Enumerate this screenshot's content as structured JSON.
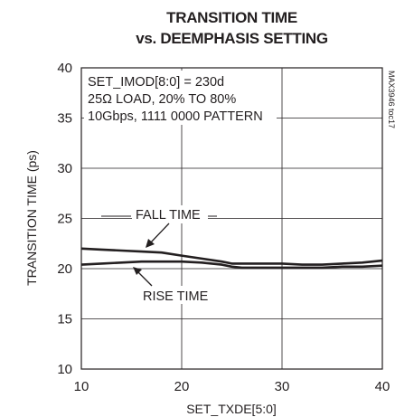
{
  "chart_data": {
    "type": "line",
    "title_line1": "TRANSITION TIME",
    "title_line2": "vs. DEEMPHASIS SETTING",
    "xlabel": "SET_TXDE[5:0]",
    "ylabel": "TRANSITION TIME (ps)",
    "xlim": [
      10,
      40
    ],
    "ylim": [
      10,
      40
    ],
    "xticks": [
      "10",
      "20",
      "30",
      "40"
    ],
    "yticks": [
      "10",
      "15",
      "20",
      "25",
      "30",
      "35",
      "40"
    ],
    "grid": true,
    "conditions": [
      "SET_IMOD[8:0] = 230d",
      "25Ω LOAD, 20% TO 80%",
      "10Gbps, 1111 0000 PATTERN"
    ],
    "figure_code": "MAX3946 toc17",
    "series": [
      {
        "name": "FALL TIME",
        "x": [
          10,
          12,
          14,
          16,
          18,
          20,
          22,
          24,
          25,
          26,
          28,
          30,
          32,
          34,
          36,
          38,
          40
        ],
        "y": [
          22.0,
          21.9,
          21.8,
          21.7,
          21.6,
          21.3,
          21.0,
          20.7,
          20.5,
          20.5,
          20.5,
          20.5,
          20.4,
          20.4,
          20.5,
          20.6,
          20.8
        ]
      },
      {
        "name": "RISE TIME",
        "x": [
          10,
          12,
          14,
          16,
          18,
          20,
          22,
          24,
          25,
          26,
          28,
          30,
          32,
          34,
          36,
          38,
          40
        ],
        "y": [
          20.4,
          20.5,
          20.6,
          20.7,
          20.7,
          20.7,
          20.6,
          20.4,
          20.2,
          20.1,
          20.1,
          20.1,
          20.1,
          20.1,
          20.2,
          20.2,
          20.3
        ]
      }
    ]
  }
}
